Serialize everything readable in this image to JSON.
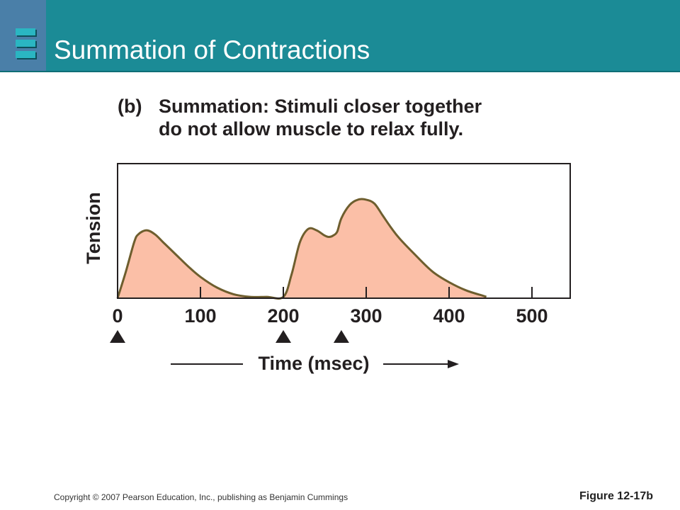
{
  "slide": {
    "title": "Summation of Contractions",
    "copyright": "Copyright © 2007 Pearson Education, Inc., publishing as Benjamin Cummings",
    "figure_label": "Figure 12-17b",
    "header_color": "#1b8b96"
  },
  "chart_data": {
    "type": "area",
    "caption_label": "(b)",
    "caption_bold": "Summation:",
    "caption_rest_line1": "Stimuli closer together",
    "caption_line2": "do not allow muscle to relax fully.",
    "xlabel": "Time (msec)",
    "ylabel": "Tension",
    "xlim": [
      0,
      545
    ],
    "ylim": [
      0,
      1
    ],
    "grid": false,
    "x_ticks": [
      0,
      100,
      200,
      300,
      400,
      500
    ],
    "x_tick_labels": [
      "0",
      "100",
      "200",
      "300",
      "400",
      "500"
    ],
    "stimuli_x": [
      0,
      200,
      270
    ],
    "fill_color": "#fbbfa7",
    "line_color": "#6e5e2e",
    "series": [
      {
        "x": [
          0,
          10,
          20,
          25,
          35,
          45,
          55,
          70,
          85,
          100,
          120,
          140,
          160,
          180,
          200,
          210,
          220,
          230,
          240,
          250,
          255,
          260,
          265,
          270,
          280,
          290,
          300,
          310,
          320,
          330,
          340,
          360,
          380,
          400,
          420,
          440,
          445
        ],
        "values": [
          0,
          0.2,
          0.42,
          0.48,
          0.51,
          0.48,
          0.42,
          0.33,
          0.24,
          0.16,
          0.08,
          0.03,
          0.01,
          0.01,
          0.01,
          0.18,
          0.42,
          0.52,
          0.51,
          0.47,
          0.46,
          0.47,
          0.5,
          0.6,
          0.7,
          0.74,
          0.74,
          0.71,
          0.62,
          0.53,
          0.45,
          0.32,
          0.2,
          0.12,
          0.06,
          0.02,
          0.01
        ]
      }
    ]
  }
}
